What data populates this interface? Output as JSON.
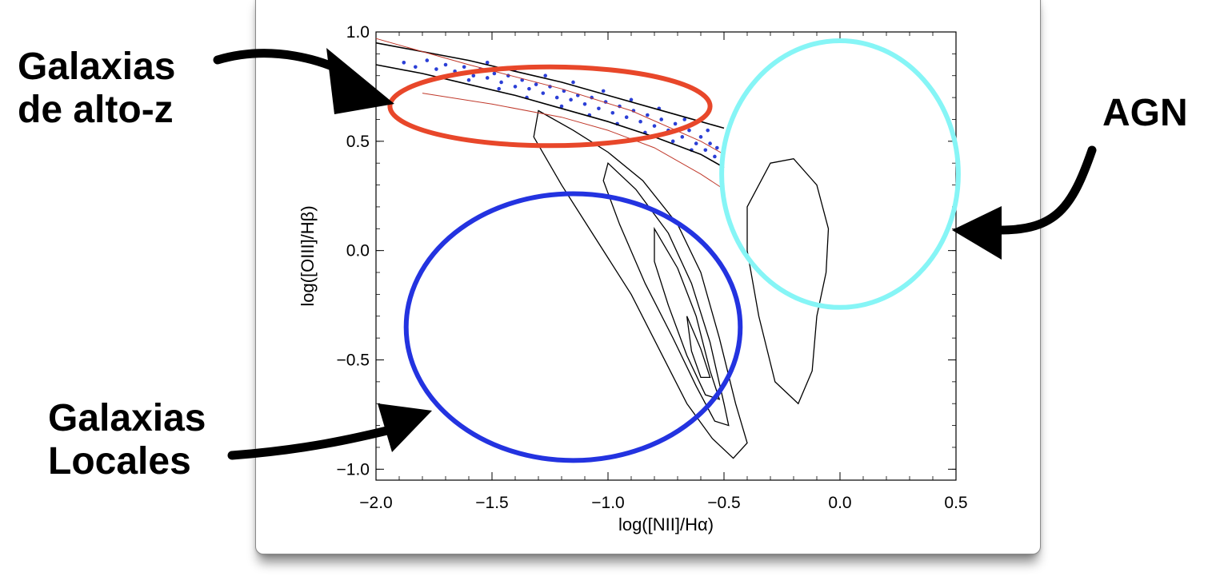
{
  "chart_data": {
    "type": "scatter",
    "xlabel": "log([NII]/Hα)",
    "ylabel": "log([OIII]/Hβ)",
    "xlim": [
      -2.0,
      0.5
    ],
    "ylim": [
      -1.05,
      1.0
    ],
    "xticks": [
      "−2.0",
      "−1.5",
      "−1.0",
      "−0.5",
      "0.0",
      "0.5"
    ],
    "yticks": [
      "1.0",
      "0.5",
      "0.0",
      "−0.5",
      "−1.0"
    ],
    "xtick_values": [
      -2.0,
      -1.5,
      -1.0,
      -0.5,
      0.0,
      0.5
    ],
    "ytick_values": [
      1.0,
      0.5,
      0.0,
      -0.5,
      -1.0
    ],
    "grid": false,
    "series": [
      {
        "kind": "scatter",
        "color": "#2b3fd6",
        "points": [
          [
            -1.88,
            0.86
          ],
          [
            -1.83,
            0.84
          ],
          [
            -1.78,
            0.87
          ],
          [
            -1.74,
            0.83
          ],
          [
            -1.7,
            0.85
          ],
          [
            -1.66,
            0.82
          ],
          [
            -1.62,
            0.84
          ],
          [
            -1.58,
            0.8
          ],
          [
            -1.55,
            0.83
          ],
          [
            -1.52,
            0.79
          ],
          [
            -1.49,
            0.81
          ],
          [
            -1.46,
            0.77
          ],
          [
            -1.43,
            0.8
          ],
          [
            -1.4,
            0.75
          ],
          [
            -1.37,
            0.78
          ],
          [
            -1.34,
            0.74
          ],
          [
            -1.31,
            0.76
          ],
          [
            -1.28,
            0.72
          ],
          [
            -1.25,
            0.75
          ],
          [
            -1.22,
            0.7
          ],
          [
            -1.19,
            0.73
          ],
          [
            -1.16,
            0.69
          ],
          [
            -1.13,
            0.71
          ],
          [
            -1.1,
            0.67
          ],
          [
            -1.07,
            0.7
          ],
          [
            -1.04,
            0.65
          ],
          [
            -1.01,
            0.68
          ],
          [
            -0.98,
            0.63
          ],
          [
            -0.95,
            0.66
          ],
          [
            -0.92,
            0.61
          ],
          [
            -0.89,
            0.64
          ],
          [
            -0.86,
            0.59
          ],
          [
            -0.83,
            0.62
          ],
          [
            -0.8,
            0.57
          ],
          [
            -0.77,
            0.6
          ],
          [
            -0.74,
            0.55
          ],
          [
            -0.71,
            0.58
          ],
          [
            -0.68,
            0.52
          ],
          [
            -0.65,
            0.55
          ],
          [
            -0.62,
            0.49
          ],
          [
            -0.6,
            0.52
          ],
          [
            -0.58,
            0.46
          ],
          [
            -0.56,
            0.49
          ],
          [
            -0.54,
            0.43
          ],
          [
            -0.53,
            0.47
          ],
          [
            -1.6,
            0.78
          ],
          [
            -1.47,
            0.74
          ],
          [
            -1.35,
            0.7
          ],
          [
            -1.2,
            0.66
          ],
          [
            -1.08,
            0.62
          ],
          [
            -0.96,
            0.58
          ],
          [
            -0.84,
            0.54
          ],
          [
            -0.72,
            0.5
          ],
          [
            -0.64,
            0.46
          ],
          [
            -1.52,
            0.86
          ],
          [
            -1.4,
            0.83
          ],
          [
            -1.27,
            0.8
          ],
          [
            -1.15,
            0.77
          ],
          [
            -1.02,
            0.73
          ],
          [
            -0.9,
            0.69
          ],
          [
            -0.78,
            0.65
          ],
          [
            -0.67,
            0.6
          ],
          [
            -0.57,
            0.55
          ]
        ]
      },
      {
        "kind": "line",
        "color": "#000000",
        "points": [
          [
            -2.0,
            0.95
          ],
          [
            -1.8,
            0.91
          ],
          [
            -1.6,
            0.87
          ],
          [
            -1.4,
            0.82
          ],
          [
            -1.2,
            0.77
          ],
          [
            -1.0,
            0.71
          ],
          [
            -0.8,
            0.65
          ],
          [
            -0.6,
            0.59
          ],
          [
            -0.5,
            0.56
          ]
        ]
      },
      {
        "kind": "line",
        "color": "#000000",
        "points": [
          [
            -2.0,
            0.85
          ],
          [
            -1.8,
            0.81
          ],
          [
            -1.6,
            0.76
          ],
          [
            -1.4,
            0.71
          ],
          [
            -1.2,
            0.65
          ],
          [
            -1.0,
            0.59
          ],
          [
            -0.8,
            0.52
          ],
          [
            -0.6,
            0.44
          ],
          [
            -0.5,
            0.38
          ]
        ]
      },
      {
        "kind": "line",
        "color": "#c0392b",
        "points": [
          [
            -2.0,
            0.97
          ],
          [
            -1.6,
            0.85
          ],
          [
            -1.2,
            0.74
          ],
          [
            -0.9,
            0.64
          ],
          [
            -0.6,
            0.5
          ],
          [
            -0.5,
            0.44
          ]
        ]
      },
      {
        "kind": "line",
        "color": "#c0392b",
        "points": [
          [
            -1.8,
            0.72
          ],
          [
            -1.5,
            0.67
          ],
          [
            -1.2,
            0.61
          ],
          [
            -1.0,
            0.55
          ],
          [
            -0.8,
            0.47
          ],
          [
            -0.6,
            0.35
          ],
          [
            -0.5,
            0.28
          ]
        ]
      }
    ],
    "contours": [
      {
        "color": "#000000",
        "points": [
          [
            -1.3,
            0.64
          ],
          [
            -1.15,
            0.55
          ],
          [
            -1.0,
            0.45
          ],
          [
            -0.85,
            0.32
          ],
          [
            -0.7,
            0.12
          ],
          [
            -0.6,
            -0.1
          ],
          [
            -0.52,
            -0.4
          ],
          [
            -0.45,
            -0.7
          ],
          [
            -0.4,
            -0.88
          ],
          [
            -0.46,
            -0.95
          ],
          [
            -0.55,
            -0.86
          ],
          [
            -0.66,
            -0.7
          ],
          [
            -0.78,
            -0.45
          ],
          [
            -0.9,
            -0.2
          ],
          [
            -1.05,
            0.05
          ],
          [
            -1.2,
            0.3
          ],
          [
            -1.32,
            0.52
          ]
        ]
      },
      {
        "color": "#000000",
        "points": [
          [
            -1.0,
            0.4
          ],
          [
            -0.88,
            0.28
          ],
          [
            -0.74,
            0.08
          ],
          [
            -0.64,
            -0.15
          ],
          [
            -0.56,
            -0.42
          ],
          [
            -0.5,
            -0.7
          ],
          [
            -0.48,
            -0.8
          ],
          [
            -0.54,
            -0.78
          ],
          [
            -0.62,
            -0.62
          ],
          [
            -0.72,
            -0.4
          ],
          [
            -0.84,
            -0.15
          ],
          [
            -0.95,
            0.12
          ],
          [
            -1.02,
            0.32
          ]
        ]
      },
      {
        "color": "#000000",
        "points": [
          [
            -0.8,
            0.1
          ],
          [
            -0.7,
            -0.08
          ],
          [
            -0.62,
            -0.3
          ],
          [
            -0.56,
            -0.55
          ],
          [
            -0.52,
            -0.68
          ],
          [
            -0.58,
            -0.66
          ],
          [
            -0.66,
            -0.48
          ],
          [
            -0.74,
            -0.25
          ],
          [
            -0.8,
            -0.05
          ]
        ]
      },
      {
        "color": "#000000",
        "points": [
          [
            -0.66,
            -0.3
          ],
          [
            -0.6,
            -0.45
          ],
          [
            -0.56,
            -0.58
          ],
          [
            -0.6,
            -0.58
          ],
          [
            -0.64,
            -0.46
          ]
        ]
      },
      {
        "color": "#000000",
        "points": [
          [
            -0.3,
            0.4
          ],
          [
            -0.2,
            0.42
          ],
          [
            -0.1,
            0.3
          ],
          [
            -0.05,
            0.1
          ],
          [
            -0.06,
            -0.1
          ],
          [
            -0.1,
            -0.3
          ],
          [
            -0.12,
            -0.55
          ],
          [
            -0.18,
            -0.7
          ],
          [
            -0.28,
            -0.6
          ],
          [
            -0.35,
            -0.3
          ],
          [
            -0.4,
            0.0
          ],
          [
            -0.4,
            0.2
          ]
        ]
      }
    ],
    "annotations": [
      {
        "kind": "ellipse",
        "color": "#e8472a",
        "center": [
          -1.25,
          0.66
        ],
        "rx": 0.69,
        "ry": 0.18
      },
      {
        "kind": "ellipse",
        "color": "#2333e0",
        "center": [
          -1.15,
          -0.35
        ],
        "rx": 0.72,
        "ry": 0.61
      },
      {
        "kind": "ellipse",
        "color": "#86f5f6",
        "center": [
          0.0,
          0.35
        ],
        "rx": 0.51,
        "ry": 0.61
      }
    ]
  },
  "callouts": {
    "high_z": "Galaxias\nde alto-z",
    "agn": "AGN",
    "local": "Galaxias\nLocales"
  }
}
